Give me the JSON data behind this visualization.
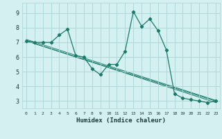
{
  "xlabel": "Humidex (Indice chaleur)",
  "bg_color": "#d4f0f0",
  "grid_color": "#aad4d4",
  "line_color": "#1a7a6a",
  "xlim": [
    -0.5,
    23.5
  ],
  "ylim": [
    2.5,
    9.7
  ],
  "xticks": [
    0,
    1,
    2,
    3,
    4,
    5,
    6,
    7,
    8,
    9,
    10,
    11,
    12,
    13,
    14,
    15,
    16,
    17,
    18,
    19,
    20,
    21,
    22,
    23
  ],
  "yticks": [
    3,
    4,
    5,
    6,
    7,
    8,
    9
  ],
  "main_x": [
    0,
    1,
    2,
    3,
    4,
    5,
    6,
    7,
    8,
    9,
    10,
    11,
    12,
    13,
    14,
    15,
    16,
    17,
    18,
    19,
    20,
    21,
    22,
    23
  ],
  "main_y": [
    7.1,
    7.0,
    7.0,
    7.0,
    7.5,
    7.9,
    6.1,
    6.0,
    5.2,
    4.8,
    5.5,
    5.5,
    6.4,
    9.1,
    8.1,
    8.6,
    7.8,
    6.5,
    3.5,
    3.2,
    3.1,
    3.0,
    2.9,
    3.0
  ],
  "line1_x": [
    0,
    23
  ],
  "line1_y": [
    7.1,
    3.0
  ],
  "line2_x": [
    0,
    23
  ],
  "line2_y": [
    7.1,
    2.9
  ],
  "line3_x": [
    0,
    23
  ],
  "line3_y": [
    7.2,
    3.05
  ]
}
